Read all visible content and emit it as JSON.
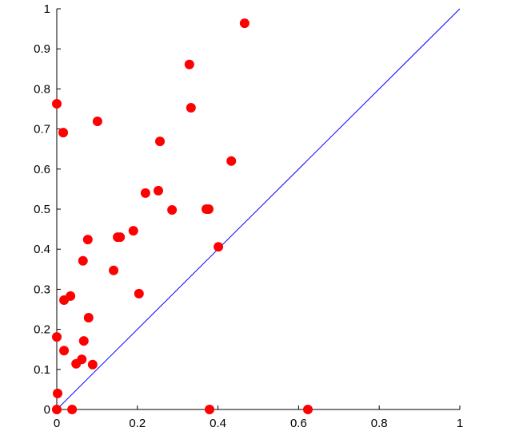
{
  "chart_data": {
    "type": "scatter",
    "color": "#ff0000",
    "x": [
      0.466,
      0.329,
      0.333,
      0,
      0.016,
      0.101,
      0.256,
      0.433,
      0.22,
      0.252,
      0.286,
      0.371,
      0.377,
      0.19,
      0.151,
      0.157,
      0.077,
      0.401,
      0.065,
      0.141,
      0.204,
      0.034,
      0.018,
      0.079,
      0,
      0.067,
      0.018,
      0.062,
      0.048,
      0.089,
      0.002,
      0,
      0.038,
      0.379,
      0.623
    ],
    "values": [
      0.964,
      0.861,
      0.753,
      0.763,
      0.691,
      0.719,
      0.669,
      0.62,
      0.54,
      0.546,
      0.498,
      0.5,
      0.5,
      0.446,
      0.43,
      0.43,
      0.424,
      0.406,
      0.371,
      0.347,
      0.289,
      0.283,
      0.273,
      0.229,
      0.181,
      0.171,
      0.147,
      0.125,
      0.114,
      0.112,
      0.04,
      0,
      0,
      0,
      0
    ],
    "xlim": [
      0,
      1
    ],
    "ylim": [
      0,
      1
    ],
    "xticks": [
      0,
      0.2,
      0.4,
      0.6,
      0.8,
      1
    ],
    "yticks": [
      0,
      0.1,
      0.2,
      0.3,
      0.4,
      0.5,
      0.6,
      0.7,
      0.8,
      0.9,
      1
    ]
  }
}
